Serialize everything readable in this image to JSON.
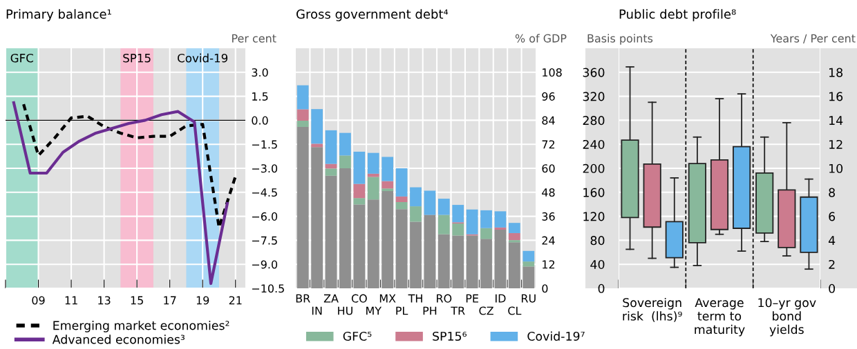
{
  "chart_data": [
    {
      "type": "line",
      "title": "Primary balance¹",
      "ylabel": "Per cent",
      "xlim": [
        2007,
        2021.6
      ],
      "xticks": [
        {
          "value": 2007,
          "label": null
        },
        {
          "value": 2009,
          "label": "09"
        },
        {
          "value": 2011,
          "label": "11"
        },
        {
          "value": 2013,
          "label": "13"
        },
        {
          "value": 2015,
          "label": "15"
        },
        {
          "value": 2017,
          "label": "17"
        },
        {
          "value": 2019,
          "label": "19"
        },
        {
          "value": 2021,
          "label": "21"
        }
      ],
      "ylim": [
        -10.5,
        4.5
      ],
      "yticks": [
        {
          "value": 3,
          "label": "3.0"
        },
        {
          "value": 1.5,
          "label": "1.5"
        },
        {
          "value": 0,
          "label": "0.0"
        },
        {
          "value": -1.5,
          "label": "−1.5"
        },
        {
          "value": -3,
          "label": "−3.0"
        },
        {
          "value": -4.5,
          "label": "−4.5"
        },
        {
          "value": -6,
          "label": "−6.0"
        },
        {
          "value": -7.5,
          "label": "−7.5"
        },
        {
          "value": -9,
          "label": "−9.0"
        },
        {
          "value": -10.5,
          "label": "−10.5"
        }
      ],
      "grid": true,
      "legend": "bottom",
      "bands": [
        {
          "axis": "x",
          "from": 2007,
          "to": 2009,
          "label": "GFC",
          "color": "#a3dccc"
        },
        {
          "axis": "x",
          "from": 2014,
          "to": 2016,
          "label": "SP15",
          "color": "#f8bcd0"
        },
        {
          "axis": "x",
          "from": 2018,
          "to": 2020,
          "label": "Covid-19",
          "color": "#aad8f5"
        }
      ],
      "ref_lines": [
        {
          "axis": "y",
          "value": 0,
          "color": "#000000"
        }
      ],
      "series": [
        {
          "name": "Emerging market economies²",
          "color": "#000000",
          "line_style": "dashed",
          "x": [
            2008.1,
            2009,
            2010,
            2011,
            2012,
            2013,
            2014,
            2015,
            2016,
            2017,
            2018,
            2019,
            2020,
            2021
          ],
          "values": [
            1.0,
            -2.2,
            -1.1,
            0.15,
            0.25,
            -0.4,
            -0.8,
            -1.1,
            -1.0,
            -1.0,
            -0.35,
            -0.25,
            -6.7,
            -3.5
          ]
        },
        {
          "name": "Advanced economies³",
          "color": "#6b2d92",
          "line_style": "solid",
          "x": [
            2007.5,
            2008.5,
            2009.5,
            2010.5,
            2011.5,
            2012.5,
            2013.5,
            2014.5,
            2015.5,
            2016.5,
            2017.5,
            2018.5,
            2019.5,
            2020.5
          ],
          "values": [
            1.1,
            -3.3,
            -3.3,
            -2.0,
            -1.3,
            -0.8,
            -0.5,
            -0.2,
            0.0,
            0.35,
            0.55,
            -0.1,
            -10.2,
            -5.2
          ]
        }
      ]
    },
    {
      "type": "bar",
      "stacked": true,
      "title": "Gross government debt⁴",
      "ylabel": "% of GDP",
      "categories": [
        "BR",
        "IN",
        "ZA",
        "HU",
        "CO",
        "MY",
        "MX",
        "PL",
        "TH",
        "PH",
        "RO",
        "TR",
        "PE",
        "CZ",
        "ID",
        "CL",
        "RU"
      ],
      "ylim": [
        0,
        120
      ],
      "yticks": [
        0,
        12,
        24,
        36,
        48,
        60,
        72,
        84,
        96,
        108
      ],
      "grid": true,
      "legend": "bottom",
      "series": [
        {
          "color": "#8f8f8f",
          "values": [
            80.7,
            70.6,
            56.3,
            60.0,
            41.9,
            44.4,
            48.6,
            39.6,
            33.3,
            36.7,
            27.0,
            26.4,
            26.4,
            24.7,
            29.3,
            23.0,
            10.9
          ]
        },
        {
          "name": "GFC⁵",
          "color": "#88b89b",
          "values": [
            3.1,
            0,
            3.6,
            6.4,
            3.2,
            11.3,
            1.3,
            3.5,
            7.7,
            0,
            9.7,
            6.0,
            0,
            5.4,
            0,
            1.1,
            2.5
          ]
        },
        {
          "name": "SP15⁶",
          "color": "#cc7b8e",
          "values": [
            5.7,
            1.7,
            2.3,
            0,
            7.1,
            1.6,
            3.7,
            2.8,
            0,
            0,
            0,
            0.6,
            0.6,
            0,
            1.1,
            3.5,
            0
          ]
        },
        {
          "name": "Covid-19⁷",
          "color": "#62b1e9",
          "values": [
            12.0,
            17.3,
            16.8,
            11.3,
            16.1,
            10.4,
            12.1,
            14.1,
            9.5,
            12.1,
            8.1,
            8.7,
            12.4,
            8.9,
            8.1,
            5.1,
            5.3
          ]
        }
      ]
    },
    {
      "type": "box",
      "title": "Public debt profile⁸",
      "ylabel": "Basis points",
      "y2label": "Years / Per cent",
      "categories": [
        "Sovereign\nrisk  (lhs)⁹",
        "Average\nterm to\nmaturity",
        "10–yr gov\nbond\nyields"
      ],
      "ylim": [
        0,
        400
      ],
      "yticks": [
        0,
        40,
        80,
        120,
        160,
        200,
        240,
        280,
        320,
        360
      ],
      "y2lim": [
        0,
        20
      ],
      "y2ticks": [
        0,
        2,
        4,
        6,
        8,
        10,
        12,
        14,
        16,
        18
      ],
      "grid": true,
      "series": [
        {
          "color": "#88b89b",
          "boxes": [
            {
              "low": 65,
              "q1": 118,
              "q3": 247,
              "high": 369
            },
            null,
            null
          ]
        },
        {
          "color": "#cc7b8e",
          "boxes": [
            {
              "low": 50,
              "q1": 102,
              "q3": 207,
              "high": 310
            },
            null,
            null
          ]
        },
        {
          "color": "#62b1e9",
          "boxes": [
            {
              "low": 35,
              "q1": 51,
              "q3": 111,
              "high": 184
            },
            null,
            null
          ]
        },
        {
          "color": "#88b89b",
          "axis": "y2",
          "boxes": [
            null,
            {
              "low": 1.9,
              "q1": 3.8,
              "q3": 10.4,
              "high": 12.6
            },
            {
              "low": 3.9,
              "q1": 4.6,
              "q3": 9.6,
              "high": 12.6
            }
          ]
        },
        {
          "color": "#cc7b8e",
          "axis": "y2",
          "boxes": [
            null,
            {
              "low": 4.5,
              "q1": 4.9,
              "q3": 10.7,
              "high": 15.8
            },
            {
              "low": 2.7,
              "q1": 3.4,
              "q3": 8.2,
              "high": 13.8
            }
          ]
        },
        {
          "color": "#62b1e9",
          "axis": "y2",
          "boxes": [
            null,
            {
              "low": 3.1,
              "q1": 5.0,
              "q3": 11.8,
              "high": 16.2
            },
            {
              "low": 1.6,
              "q1": 3.0,
              "q3": 7.6,
              "high": 9.1
            }
          ]
        }
      ]
    }
  ]
}
